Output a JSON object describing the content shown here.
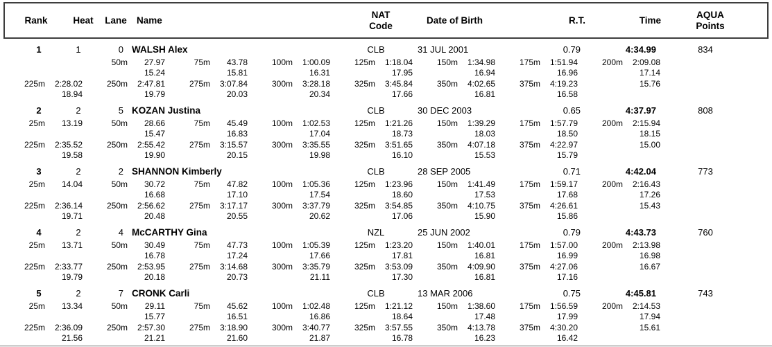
{
  "colors": {
    "text": "#000000",
    "header_border": "#3d3d3d"
  },
  "header": {
    "rank": "Rank",
    "heat": "Heat",
    "lane": "Lane",
    "name": "Name",
    "nat_line1": "NAT",
    "nat_line2": "Code",
    "dob": "Date of Birth",
    "rt": "R.T.",
    "time": "Time",
    "points_line1": "AQUA",
    "points_line2": "Points"
  },
  "rows": [
    {
      "rank": "1",
      "heat": "1",
      "lane": "0",
      "name": "WALSH Alex",
      "nat": "CLB",
      "dob": "31 JUL 2001",
      "rt": "0.79",
      "time": "4:34.99",
      "points": "834",
      "splits1": [
        {
          "d": "",
          "t": "",
          "lap": ""
        },
        {
          "d": "50m",
          "t": "27.97",
          "lap": "15.24"
        },
        {
          "d": "75m",
          "t": "43.78",
          "lap": "15.81"
        },
        {
          "d": "100m",
          "t": "1:00.09",
          "lap": "16.31"
        },
        {
          "d": "125m",
          "t": "1:18.04",
          "lap": "17.95"
        },
        {
          "d": "150m",
          "t": "1:34.98",
          "lap": "16.94"
        },
        {
          "d": "175m",
          "t": "1:51.94",
          "lap": "16.96"
        },
        {
          "d": "200m",
          "t": "2:09.08",
          "lap": "17.14"
        }
      ],
      "splits2": [
        {
          "d": "225m",
          "t": "2:28.02",
          "lap": "18.94"
        },
        {
          "d": "250m",
          "t": "2:47.81",
          "lap": "19.79"
        },
        {
          "d": "275m",
          "t": "3:07.84",
          "lap": "20.03"
        },
        {
          "d": "300m",
          "t": "3:28.18",
          "lap": "20.34"
        },
        {
          "d": "325m",
          "t": "3:45.84",
          "lap": "17.66"
        },
        {
          "d": "350m",
          "t": "4:02.65",
          "lap": "16.81"
        },
        {
          "d": "375m",
          "t": "4:19.23",
          "lap": "16.58"
        },
        {
          "d": "",
          "t": "",
          "lap": "15.76"
        }
      ]
    },
    {
      "rank": "2",
      "heat": "2",
      "lane": "5",
      "name": "KOZAN Justina",
      "nat": "CLB",
      "dob": "30 DEC 2003",
      "rt": "0.65",
      "time": "4:37.97",
      "points": "808",
      "splits1": [
        {
          "d": "25m",
          "t": "13.19",
          "lap": ""
        },
        {
          "d": "50m",
          "t": "28.66",
          "lap": "15.47"
        },
        {
          "d": "75m",
          "t": "45.49",
          "lap": "16.83"
        },
        {
          "d": "100m",
          "t": "1:02.53",
          "lap": "17.04"
        },
        {
          "d": "125m",
          "t": "1:21.26",
          "lap": "18.73"
        },
        {
          "d": "150m",
          "t": "1:39.29",
          "lap": "18.03"
        },
        {
          "d": "175m",
          "t": "1:57.79",
          "lap": "18.50"
        },
        {
          "d": "200m",
          "t": "2:15.94",
          "lap": "18.15"
        }
      ],
      "splits2": [
        {
          "d": "225m",
          "t": "2:35.52",
          "lap": "19.58"
        },
        {
          "d": "250m",
          "t": "2:55.42",
          "lap": "19.90"
        },
        {
          "d": "275m",
          "t": "3:15.57",
          "lap": "20.15"
        },
        {
          "d": "300m",
          "t": "3:35.55",
          "lap": "19.98"
        },
        {
          "d": "325m",
          "t": "3:51.65",
          "lap": "16.10"
        },
        {
          "d": "350m",
          "t": "4:07.18",
          "lap": "15.53"
        },
        {
          "d": "375m",
          "t": "4:22.97",
          "lap": "15.79"
        },
        {
          "d": "",
          "t": "",
          "lap": "15.00"
        }
      ]
    },
    {
      "rank": "3",
      "heat": "2",
      "lane": "2",
      "name": "SHANNON Kimberly",
      "nat": "CLB",
      "dob": "28 SEP 2005",
      "rt": "0.71",
      "time": "4:42.04",
      "points": "773",
      "splits1": [
        {
          "d": "25m",
          "t": "14.04",
          "lap": ""
        },
        {
          "d": "50m",
          "t": "30.72",
          "lap": "16.68"
        },
        {
          "d": "75m",
          "t": "47.82",
          "lap": "17.10"
        },
        {
          "d": "100m",
          "t": "1:05.36",
          "lap": "17.54"
        },
        {
          "d": "125m",
          "t": "1:23.96",
          "lap": "18.60"
        },
        {
          "d": "150m",
          "t": "1:41.49",
          "lap": "17.53"
        },
        {
          "d": "175m",
          "t": "1:59.17",
          "lap": "17.68"
        },
        {
          "d": "200m",
          "t": "2:16.43",
          "lap": "17.26"
        }
      ],
      "splits2": [
        {
          "d": "225m",
          "t": "2:36.14",
          "lap": "19.71"
        },
        {
          "d": "250m",
          "t": "2:56.62",
          "lap": "20.48"
        },
        {
          "d": "275m",
          "t": "3:17.17",
          "lap": "20.55"
        },
        {
          "d": "300m",
          "t": "3:37.79",
          "lap": "20.62"
        },
        {
          "d": "325m",
          "t": "3:54.85",
          "lap": "17.06"
        },
        {
          "d": "350m",
          "t": "4:10.75",
          "lap": "15.90"
        },
        {
          "d": "375m",
          "t": "4:26.61",
          "lap": "15.86"
        },
        {
          "d": "",
          "t": "",
          "lap": "15.43"
        }
      ]
    },
    {
      "rank": "4",
      "heat": "2",
      "lane": "4",
      "name": "McCARTHY Gina",
      "nat": "NZL",
      "dob": "25 JUN 2002",
      "rt": "0.79",
      "time": "4:43.73",
      "points": "760",
      "splits1": [
        {
          "d": "25m",
          "t": "13.71",
          "lap": ""
        },
        {
          "d": "50m",
          "t": "30.49",
          "lap": "16.78"
        },
        {
          "d": "75m",
          "t": "47.73",
          "lap": "17.24"
        },
        {
          "d": "100m",
          "t": "1:05.39",
          "lap": "17.66"
        },
        {
          "d": "125m",
          "t": "1:23.20",
          "lap": "17.81"
        },
        {
          "d": "150m",
          "t": "1:40.01",
          "lap": "16.81"
        },
        {
          "d": "175m",
          "t": "1:57.00",
          "lap": "16.99"
        },
        {
          "d": "200m",
          "t": "2:13.98",
          "lap": "16.98"
        }
      ],
      "splits2": [
        {
          "d": "225m",
          "t": "2:33.77",
          "lap": "19.79"
        },
        {
          "d": "250m",
          "t": "2:53.95",
          "lap": "20.18"
        },
        {
          "d": "275m",
          "t": "3:14.68",
          "lap": "20.73"
        },
        {
          "d": "300m",
          "t": "3:35.79",
          "lap": "21.11"
        },
        {
          "d": "325m",
          "t": "3:53.09",
          "lap": "17.30"
        },
        {
          "d": "350m",
          "t": "4:09.90",
          "lap": "16.81"
        },
        {
          "d": "375m",
          "t": "4:27.06",
          "lap": "17.16"
        },
        {
          "d": "",
          "t": "",
          "lap": "16.67"
        }
      ]
    },
    {
      "rank": "5",
      "heat": "2",
      "lane": "7",
      "name": "CRONK Carli",
      "nat": "CLB",
      "dob": "13 MAR 2006",
      "rt": "0.75",
      "time": "4:45.81",
      "points": "743",
      "splits1": [
        {
          "d": "25m",
          "t": "13.34",
          "lap": ""
        },
        {
          "d": "50m",
          "t": "29.11",
          "lap": "15.77"
        },
        {
          "d": "75m",
          "t": "45.62",
          "lap": "16.51"
        },
        {
          "d": "100m",
          "t": "1:02.48",
          "lap": "16.86"
        },
        {
          "d": "125m",
          "t": "1:21.12",
          "lap": "18.64"
        },
        {
          "d": "150m",
          "t": "1:38.60",
          "lap": "17.48"
        },
        {
          "d": "175m",
          "t": "1:56.59",
          "lap": "17.99"
        },
        {
          "d": "200m",
          "t": "2:14.53",
          "lap": "17.94"
        }
      ],
      "splits2": [
        {
          "d": "225m",
          "t": "2:36.09",
          "lap": "21.56"
        },
        {
          "d": "250m",
          "t": "2:57.30",
          "lap": "21.21"
        },
        {
          "d": "275m",
          "t": "3:18.90",
          "lap": "21.60"
        },
        {
          "d": "300m",
          "t": "3:40.77",
          "lap": "21.87"
        },
        {
          "d": "325m",
          "t": "3:57.55",
          "lap": "16.78"
        },
        {
          "d": "350m",
          "t": "4:13.78",
          "lap": "16.23"
        },
        {
          "d": "375m",
          "t": "4:30.20",
          "lap": "16.42"
        },
        {
          "d": "",
          "t": "",
          "lap": "15.61"
        }
      ]
    }
  ]
}
